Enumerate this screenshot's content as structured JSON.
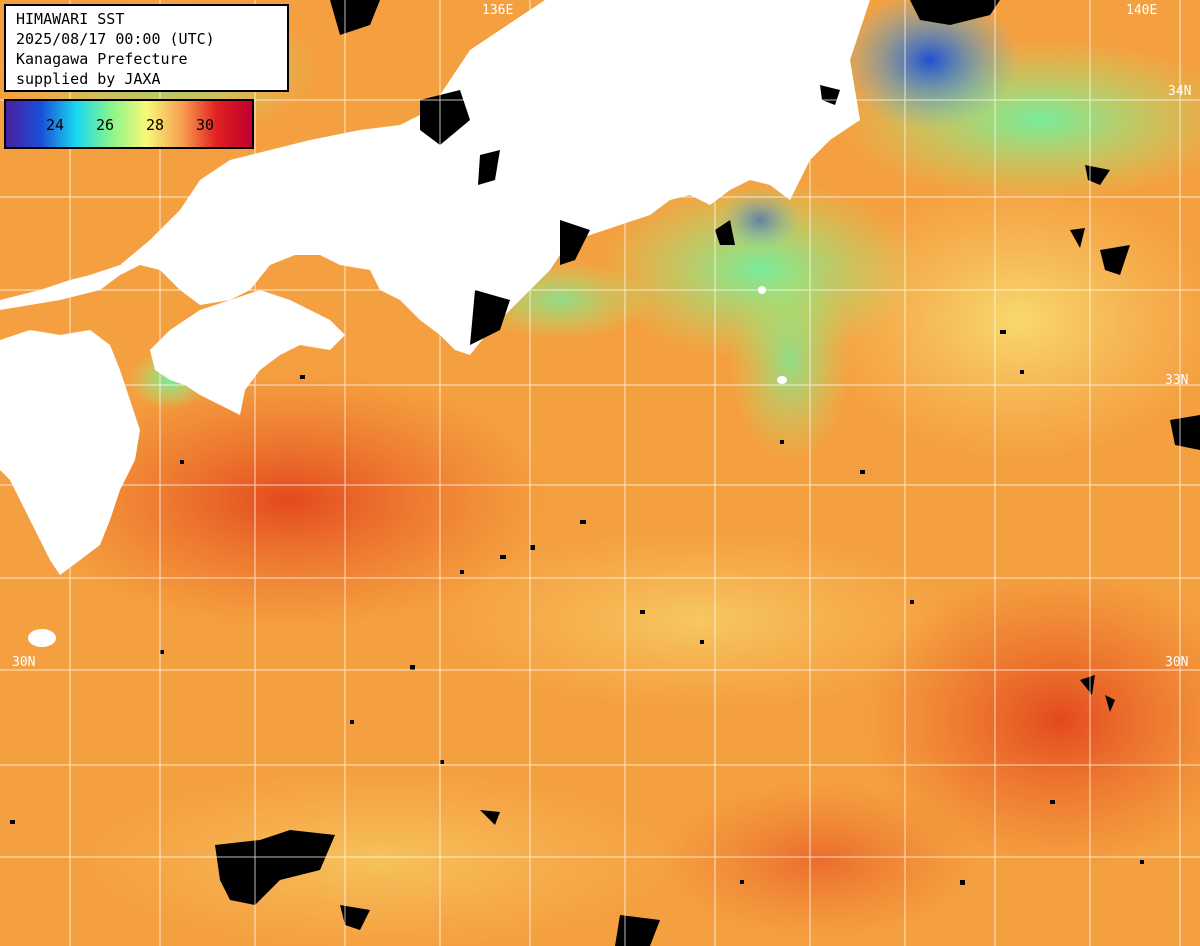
{
  "info": {
    "title": "HIMAWARI SST",
    "datetime": "2025/08/17 00:00 (UTC)",
    "agency": "Kanagawa Prefecture",
    "supplier": "supplied by JAXA"
  },
  "legend": {
    "ticks": [
      "24",
      "26",
      "28",
      "30"
    ],
    "gradient_colors": [
      "#4a1fa0",
      "#1a4fd8",
      "#19d8f0",
      "#8af58a",
      "#f8f87a",
      "#f8a050",
      "#e02020",
      "#c00030"
    ]
  },
  "grid_labels": {
    "lat_33": "33N",
    "lat_30_left": "30N",
    "lat_30_right": "30N",
    "lat_top_right": "34N",
    "lon_top": "140E",
    "lon_top_mid": "136E"
  },
  "colors": {
    "land": "#ffffff",
    "cloud_mask": "#000000",
    "grid": "#ffffff",
    "warm_sea": "#f5a040",
    "hot_sea": "#e85a20",
    "cool_sea": "#a0f070",
    "cold_sea": "#3080f0"
  }
}
